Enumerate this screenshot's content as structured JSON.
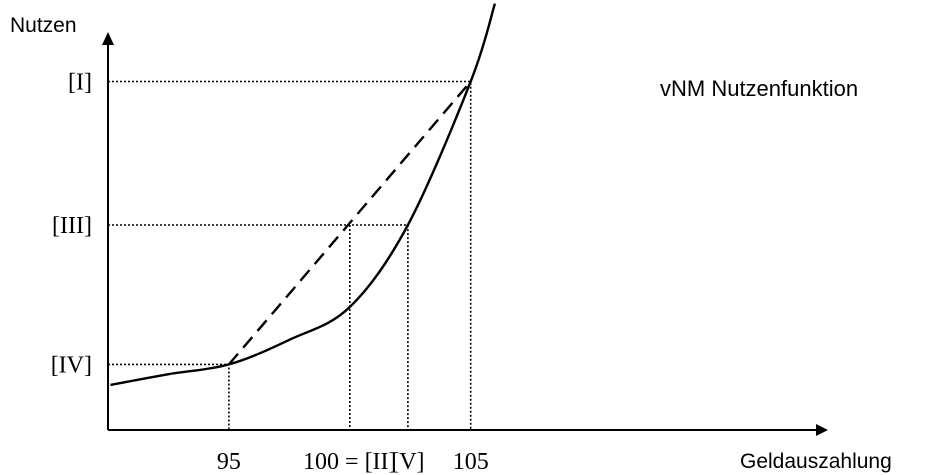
{
  "chart_data": {
    "type": "line",
    "title": "",
    "xlabel": "Geldauszahlung",
    "ylabel": "Nutzen",
    "xlim": [
      90,
      112
    ],
    "ylim": [
      0,
      100
    ],
    "x_ticks": [
      {
        "label": "95",
        "value": 95
      },
      {
        "label": "100 = [II]",
        "value": 100
      },
      {
        "label": "[V]",
        "value": 102.4
      },
      {
        "label": "105",
        "value": 105
      }
    ],
    "y_ticks": [
      {
        "label": "[I]",
        "value": 85
      },
      {
        "label": "[III]",
        "value": 50
      },
      {
        "label": "[IV]",
        "value": 16
      }
    ],
    "series": [
      {
        "name": "vNM Nutzenfunktion",
        "style": "solid",
        "x": [
          90.1,
          92.5,
          95,
          97.5,
          100,
          102.4,
          105,
          106
        ],
        "y": [
          11,
          13.6,
          16,
          22,
          30,
          50,
          85,
          104
        ]
      },
      {
        "style": "dashed",
        "x": [
          95,
          105
        ],
        "y": [
          16,
          85
        ]
      }
    ],
    "guides": [
      {
        "style": "dotted",
        "x": [
          90,
          105,
          105
        ],
        "y": [
          85,
          85,
          0
        ]
      },
      {
        "style": "dotted",
        "x": [
          90,
          102.4,
          102.4
        ],
        "y": [
          50,
          50,
          0
        ]
      },
      {
        "style": "dotted",
        "x": [
          100,
          100
        ],
        "y": [
          50,
          0
        ]
      },
      {
        "style": "dotted",
        "x": [
          90,
          95,
          95
        ],
        "y": [
          16,
          16,
          0
        ]
      }
    ],
    "grid": false,
    "legend": "none",
    "colors": {
      "line": "#000000",
      "background": "#ffffff"
    }
  }
}
